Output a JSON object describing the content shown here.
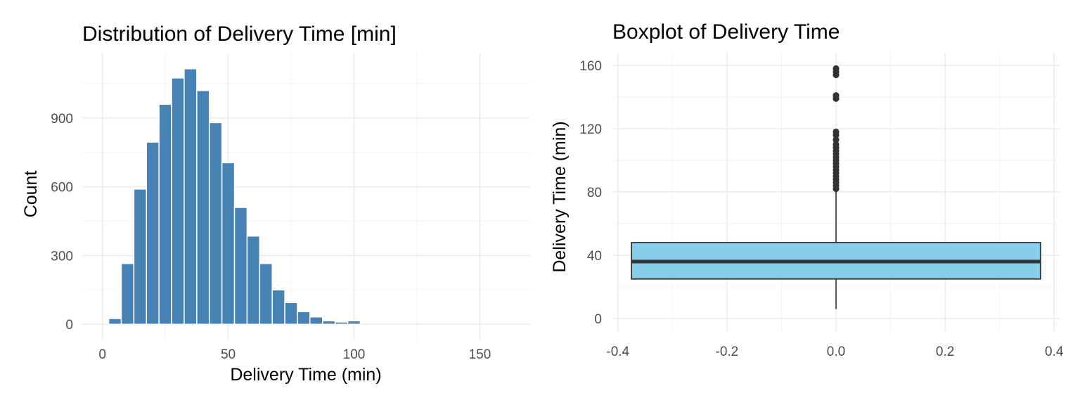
{
  "chart_data": [
    {
      "type": "bar",
      "subtype": "histogram",
      "title": "Distribution of Delivery Time [min]",
      "xlabel": "Delivery Time (min)",
      "ylabel": "Count",
      "bar_color": "#4682B4",
      "bin_width": 5,
      "bin_centers": [
        5,
        10,
        15,
        20,
        25,
        30,
        35,
        40,
        45,
        50,
        55,
        60,
        65,
        70,
        75,
        80,
        85,
        90,
        95,
        100
      ],
      "values": [
        25,
        265,
        590,
        795,
        960,
        1075,
        1115,
        1020,
        880,
        705,
        510,
        385,
        265,
        150,
        95,
        55,
        32,
        15,
        10,
        15
      ],
      "xlim": [
        -8,
        170
      ],
      "ylim": [
        -70,
        1185
      ],
      "xticks": [
        0,
        50,
        100,
        150
      ],
      "xtick_labels": [
        "0",
        "50",
        "100",
        "150"
      ],
      "yticks": [
        0,
        300,
        600,
        900
      ],
      "ytick_labels": [
        "0",
        "300",
        "600",
        "900"
      ],
      "grid": true
    },
    {
      "type": "box",
      "title": "Boxplot of Delivery Time",
      "xlabel": "",
      "ylabel": "Delivery Time (min)",
      "box_color": "#87CEEB",
      "line_color": "#333333",
      "x_center": 0,
      "box_half_width": 0.375,
      "whisker_low": 6,
      "q1": 25,
      "median": 36,
      "q3": 48,
      "whisker_high": 81,
      "outliers": [
        82,
        84,
        86,
        88,
        90,
        92,
        94,
        96,
        98,
        100,
        102,
        104,
        106,
        108,
        110,
        113,
        116,
        118,
        139,
        141,
        154,
        156,
        158
      ],
      "xlim": [
        -0.41,
        0.41
      ],
      "ylim": [
        -8,
        168
      ],
      "xticks": [
        -0.4,
        -0.2,
        0.0,
        0.2,
        0.4
      ],
      "xtick_labels": [
        "-0.4",
        "-0.2",
        "0.0",
        "0.2",
        "0.4"
      ],
      "yticks": [
        0,
        40,
        80,
        120,
        160
      ],
      "ytick_labels": [
        "0",
        "40",
        "80",
        "120",
        "160"
      ],
      "grid": true
    }
  ]
}
